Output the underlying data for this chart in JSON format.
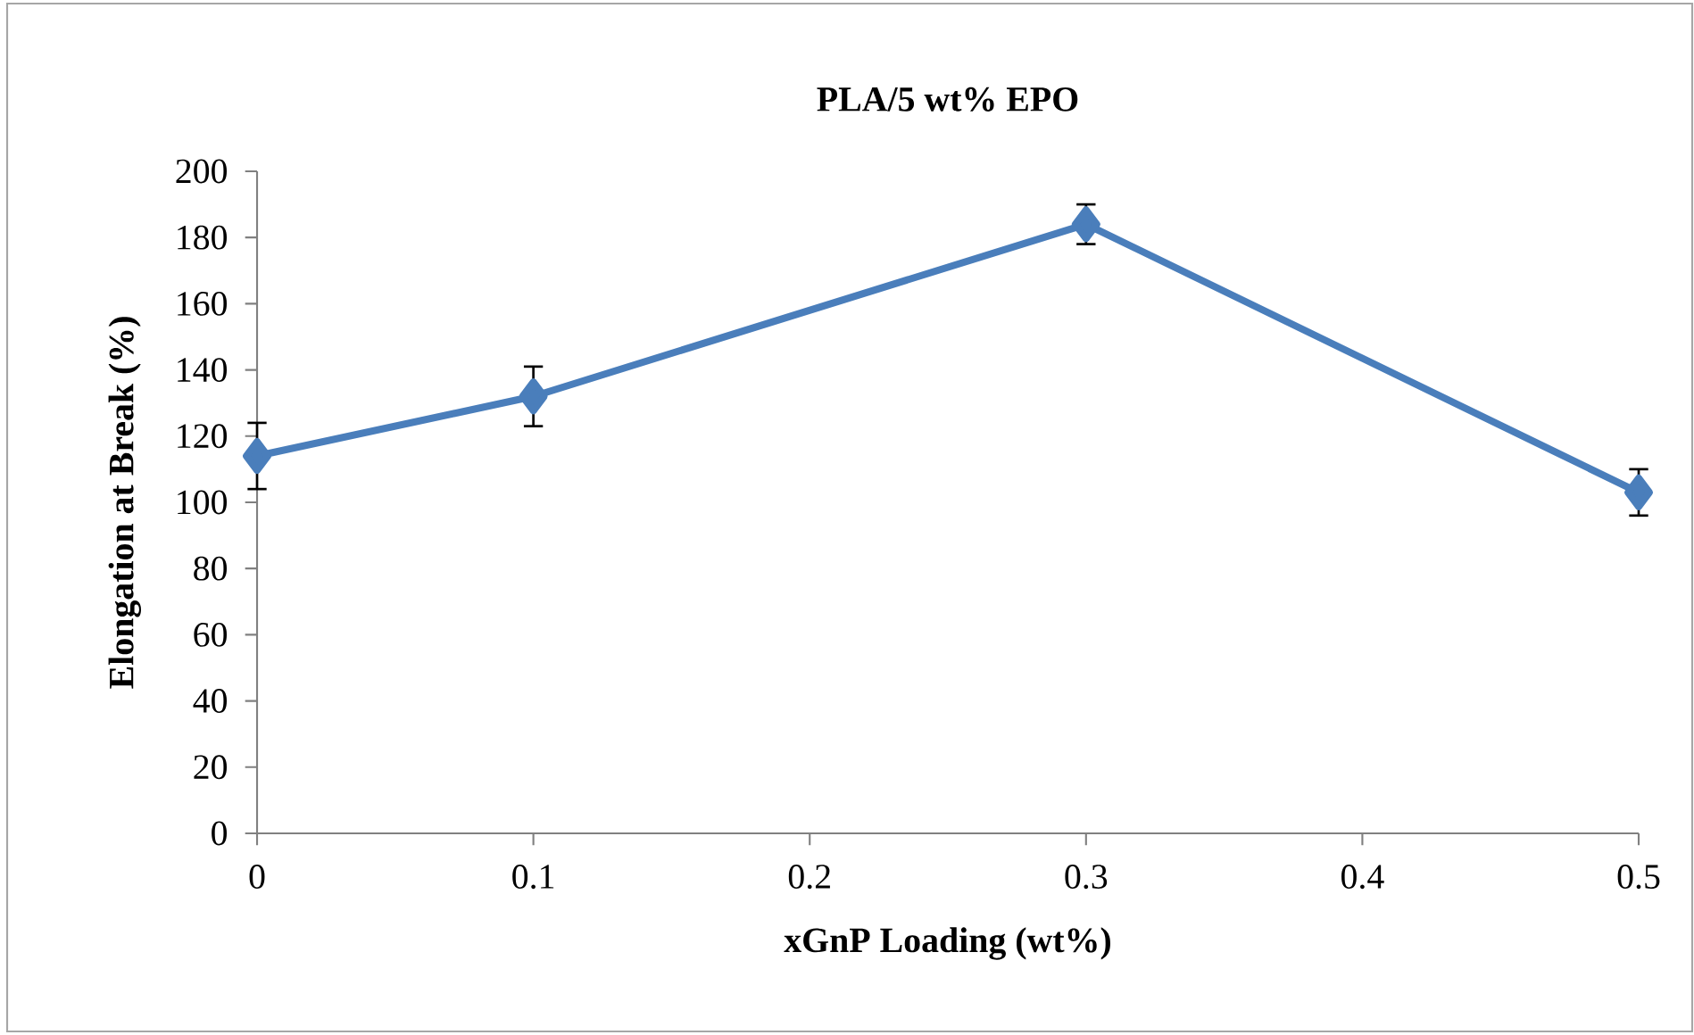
{
  "chart_data": {
    "type": "line",
    "title": "PLA/5 wt% EPO",
    "xlabel": "xGnP Loading (wt%)",
    "ylabel": "Elongation at Break (%)",
    "x": [
      0,
      0.1,
      0.3,
      0.5
    ],
    "series": [
      {
        "color": "#4a7ebb",
        "values": [
          114,
          132,
          184,
          103
        ],
        "errors": [
          10,
          9,
          6,
          7
        ]
      }
    ],
    "xlim": [
      0,
      0.5
    ],
    "xticks": [
      0,
      0.1,
      0.2,
      0.3,
      0.4,
      0.5
    ],
    "ylim": [
      0,
      200
    ],
    "yticks": [
      0,
      20,
      40,
      60,
      80,
      100,
      120,
      140,
      160,
      180,
      200
    ],
    "grid": false,
    "marker": "diamond",
    "line_style": "solid"
  }
}
